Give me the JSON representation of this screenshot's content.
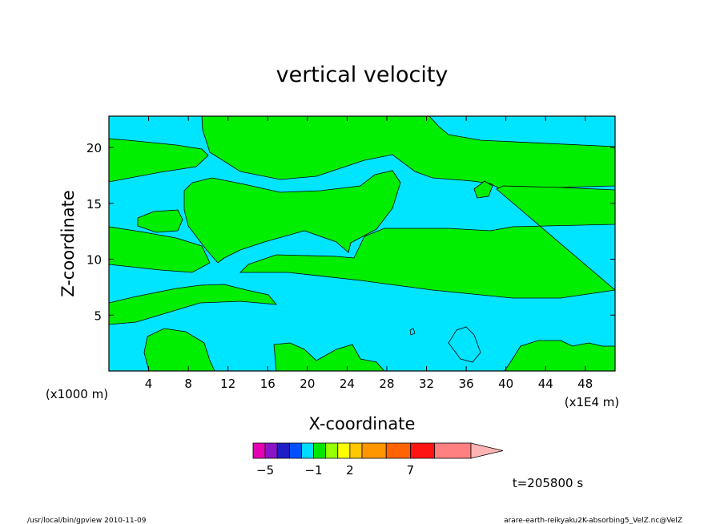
{
  "chart_data": {
    "type": "heatmap",
    "title": "vertical velocity",
    "xlabel": "X-coordinate",
    "ylabel": "Z-coordinate",
    "x_unit_left": "(x1000 m)",
    "x_unit_right": "(x1E4 m)",
    "xlim": [
      0,
      51
    ],
    "ylim": [
      0,
      22.8
    ],
    "x_ticks": [
      4,
      8,
      12,
      16,
      20,
      24,
      28,
      32,
      36,
      40,
      44,
      48
    ],
    "x_tick_labels": [
      "4",
      "8",
      "12",
      "16",
      "20",
      "24",
      "28",
      "32",
      "36",
      "40",
      "44",
      "48"
    ],
    "y_ticks": [
      5,
      10,
      15,
      20
    ],
    "y_tick_labels": [
      "5",
      "10",
      "15",
      "20"
    ],
    "grid": false,
    "field_colors": {
      "negative": "#00e5ff",
      "positive": "#00ee00"
    },
    "colorbar": {
      "levels": [
        -6,
        -5,
        -4,
        -3,
        -2,
        -1,
        0,
        1,
        2,
        3,
        5,
        7,
        9,
        12
      ],
      "colors": [
        "#e600b4",
        "#8c14c8",
        "#1e1ec8",
        "#0050ff",
        "#00dcff",
        "#00e600",
        "#96ff00",
        "#ffff00",
        "#ffc800",
        "#ff9600",
        "#ff6400",
        "#ff1414",
        "#ff8080",
        "#ffb4b4"
      ],
      "tick_values": [
        -5,
        -1,
        2,
        7
      ],
      "tick_labels": [
        "−5",
        "−1",
        "2",
        "7"
      ]
    },
    "annotations": {
      "time": "t=205800 s",
      "footer_left": "/usr/local/bin/gpview  2010-11-09",
      "footer_right": "arare-earth-reikyaku2K-absorbing5_VelZ.nc@VelZ"
    }
  }
}
